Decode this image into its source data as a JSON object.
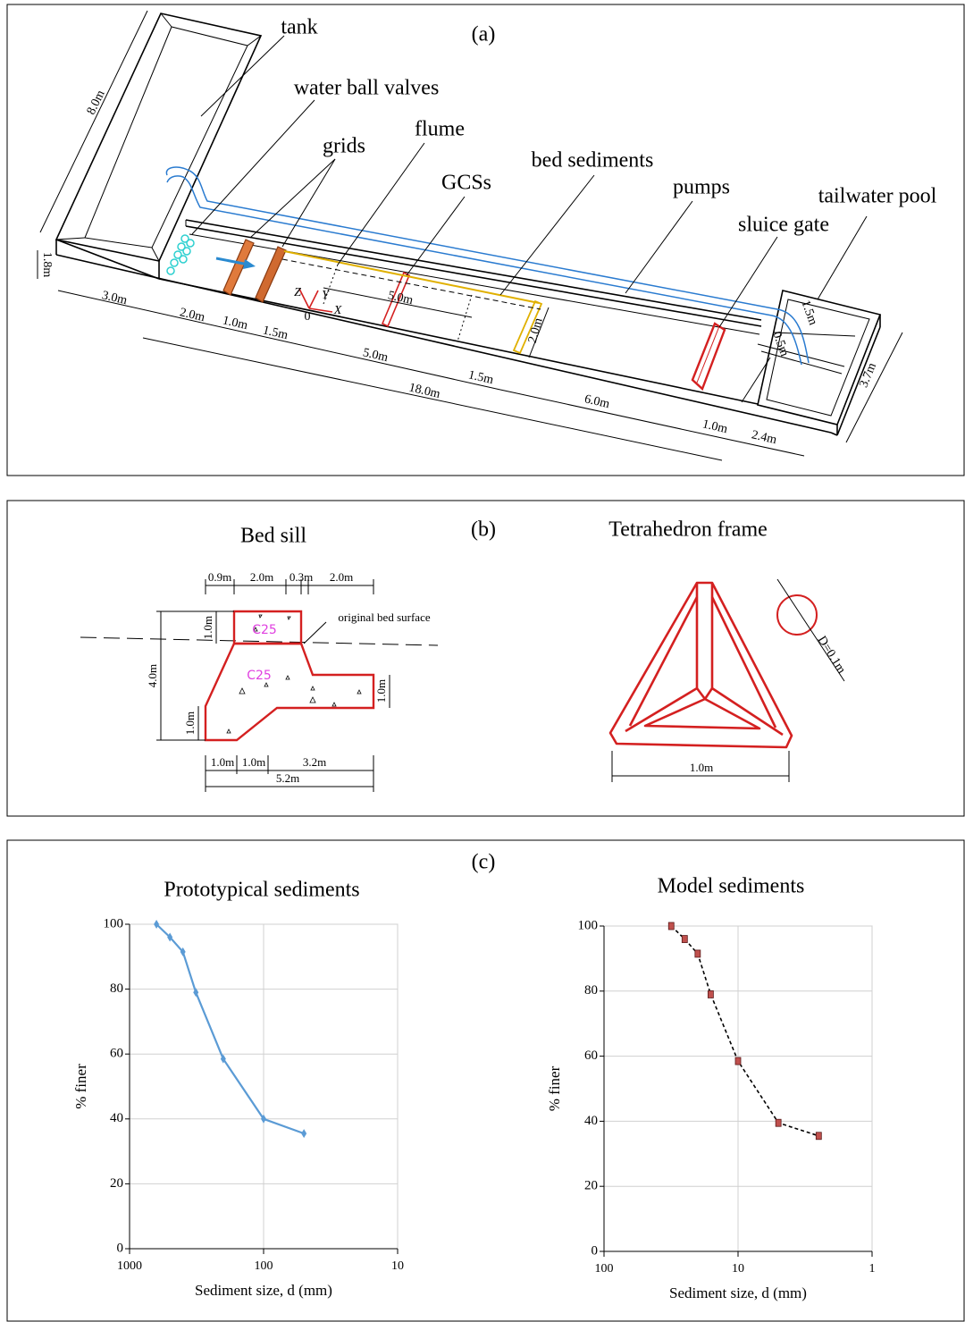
{
  "panel_a": {
    "label": "(a)",
    "callouts": [
      "tank",
      "water ball valves",
      "grids",
      "flume",
      "GCSs",
      "bed sediments",
      "pumps",
      "sluice gate",
      "tailwater pool"
    ],
    "dimensions": [
      "8.0m",
      "1.8m",
      "3.0m",
      "2.0m",
      "1.0m",
      "1.5m",
      "5.0m",
      "1.5m",
      "18.0m",
      "6.0m",
      "1.0m",
      "2.4m",
      "3.7m",
      "1.5m",
      "0.5m",
      "5.0m",
      "2.0m"
    ],
    "axes": [
      "Z",
      "Y",
      "X",
      "0"
    ]
  },
  "panel_b": {
    "label": "(b)",
    "bed_sill": {
      "title": "Bed sill",
      "dimensions": [
        "0.9m",
        "2.0m",
        "0.3m",
        "2.0m",
        "1.0m",
        "4.0m",
        "1.0m",
        "1.0m",
        "1.0m",
        "1.0m",
        "3.2m",
        "5.2m"
      ],
      "surface_label": "original bed surface",
      "material": [
        "C25",
        "C25"
      ]
    },
    "tetrahedron": {
      "title": "Tetrahedron frame",
      "diameter": "D=0.1m",
      "width": "1.0m"
    }
  },
  "panel_c": {
    "label": "(c)"
  },
  "chart_data": [
    {
      "type": "line",
      "title": "Prototypical sediments",
      "x_label": "Sediment size, d (mm)",
      "y_label": "% finer",
      "x": [
        630,
        500,
        400,
        320,
        200,
        100,
        50
      ],
      "values": [
        100,
        96,
        91.5,
        79,
        58.5,
        40,
        35.5
      ],
      "color": "#5b9bd5",
      "line_style": "solid",
      "marker": "diamond",
      "marker_color": "#5b9bd5",
      "xscale": "log",
      "xlim": [
        1000,
        10
      ],
      "xticks": [
        1000,
        100,
        10
      ],
      "ylim": [
        0,
        100
      ],
      "yticks": [
        0,
        20,
        40,
        60,
        80,
        100
      ],
      "grid": true
    },
    {
      "type": "line",
      "title": "Model sediments",
      "x_label": "Sediment size, d (mm)",
      "y_label": "% finer",
      "x": [
        31.5,
        25,
        20,
        16,
        10,
        5,
        2.5
      ],
      "values": [
        100,
        96,
        91.5,
        79,
        58.5,
        39.5,
        35.5
      ],
      "color": "#000000",
      "line_style": "dashed",
      "marker": "square",
      "marker_color": "#c0504d",
      "xscale": "log",
      "xlim": [
        100,
        1
      ],
      "xticks": [
        100,
        10,
        1
      ],
      "ylim": [
        0,
        100
      ],
      "yticks": [
        0,
        20,
        40,
        60,
        80,
        100
      ],
      "grid": true
    }
  ]
}
